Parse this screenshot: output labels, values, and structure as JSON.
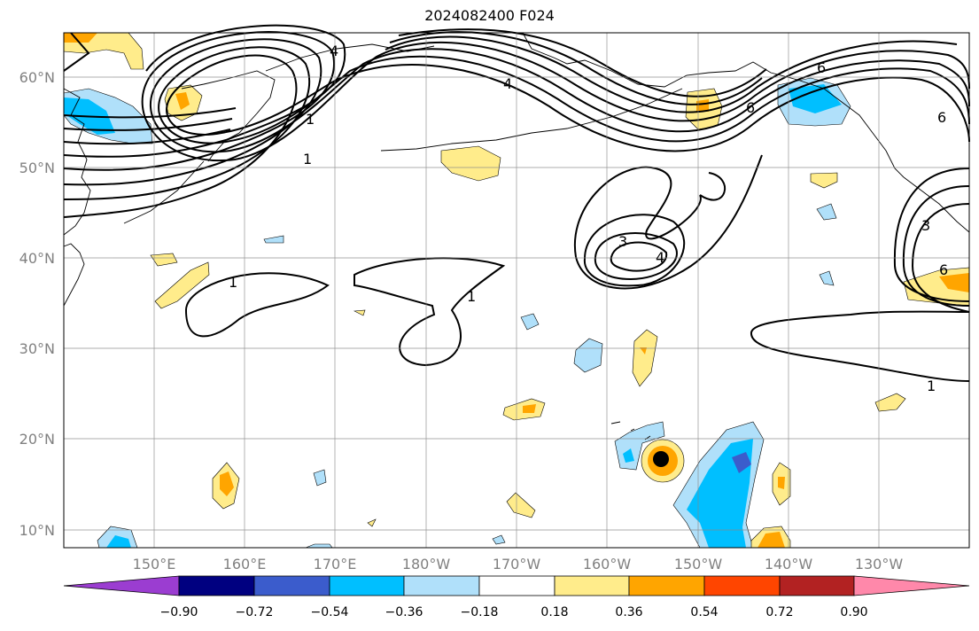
{
  "title": "2024082400 F024",
  "lat_labels": [
    "60°N",
    "50°N",
    "40°N",
    "30°N",
    "20°N",
    "10°N"
  ],
  "lon_labels": [
    "150°E",
    "160°E",
    "170°E",
    "180°W",
    "170°W",
    "160°W",
    "150°W",
    "140°W",
    "130°W"
  ],
  "contour_labels": [
    "4",
    "4",
    "1",
    "1",
    "1",
    "1",
    "3",
    "4",
    "6",
    "6",
    "6",
    "3",
    "6",
    "1"
  ],
  "colorbar": {
    "ticks": [
      "−0.90",
      "−0.72",
      "−0.54",
      "−0.36",
      "−0.18",
      "0.18",
      "0.36",
      "0.54",
      "0.72",
      "0.90"
    ],
    "colors": [
      "#9b3dd1",
      "#000080",
      "#3b5ccc",
      "#00bfff",
      "#b0e0fa",
      "#ffffff",
      "#ffec8b",
      "#ffa500",
      "#ff4500",
      "#b22222",
      "#ff88aa"
    ]
  }
}
